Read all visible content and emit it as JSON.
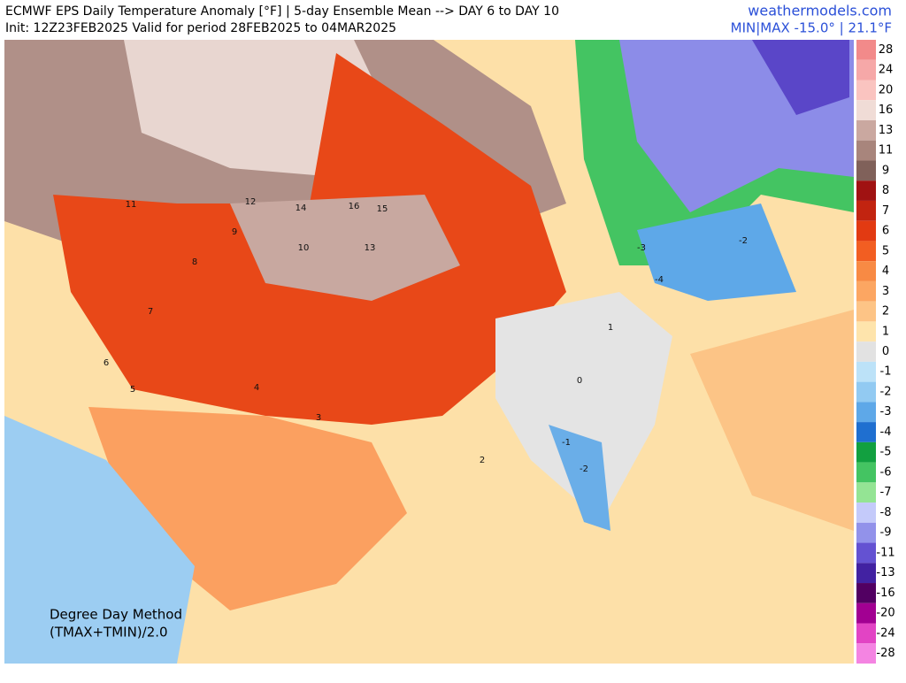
{
  "header": {
    "title": "ECMWF EPS Daily Temperature Anomaly [°F] | 5-day Ensemble Mean --> DAY 6 to DAY 10",
    "subtitle": "Init: 12Z23FEB2025 Valid for period 28FEB2025 to 04MAR2025",
    "site": "weathermodels.com",
    "minmax": "MIN|MAX -15.0° | 21.1°F"
  },
  "method": {
    "line1": "Degree Day Method",
    "line2": "(TMAX+TMIN)/2.0"
  },
  "legend": [
    {
      "label": 28,
      "color": "#f28a8a"
    },
    {
      "label": 24,
      "color": "#f6a8a8"
    },
    {
      "label": 20,
      "color": "#fac4c0"
    },
    {
      "label": 16,
      "color": "#f0dcd6"
    },
    {
      "label": 13,
      "color": "#caa8a0"
    },
    {
      "label": 11,
      "color": "#a8857c"
    },
    {
      "label": 9,
      "color": "#80615a"
    },
    {
      "label": 8,
      "color": "#a01212"
    },
    {
      "label": 7,
      "color": "#c22410"
    },
    {
      "label": 6,
      "color": "#e23a12"
    },
    {
      "label": 5,
      "color": "#f25e22"
    },
    {
      "label": 4,
      "color": "#f88a44"
    },
    {
      "label": 3,
      "color": "#fca662"
    },
    {
      "label": 2,
      "color": "#fdc486"
    },
    {
      "label": 1,
      "color": "#fee4ac"
    },
    {
      "label": 0,
      "color": "#e2e2e2"
    },
    {
      "label": -1,
      "color": "#bce2f8"
    },
    {
      "label": -2,
      "color": "#92caf2"
    },
    {
      "label": -3,
      "color": "#5ea8e8"
    },
    {
      "label": -4,
      "color": "#1f6fd0"
    },
    {
      "label": -5,
      "color": "#12a040"
    },
    {
      "label": -6,
      "color": "#44c462"
    },
    {
      "label": -7,
      "color": "#94e494"
    },
    {
      "label": -8,
      "color": "#c4cafa"
    },
    {
      "label": -9,
      "color": "#9292ea"
    },
    {
      "label": -11,
      "color": "#6452d2"
    },
    {
      "label": -13,
      "color": "#4222a2"
    },
    {
      "label": -16,
      "color": "#520062"
    },
    {
      "label": -20,
      "color": "#a20092"
    },
    {
      "label": -24,
      "color": "#e244c4"
    },
    {
      "label": -28,
      "color": "#f484e2"
    }
  ],
  "map_labels": [
    "11",
    "12",
    "14",
    "16",
    "15",
    "13",
    "10",
    "9",
    "8",
    "7",
    "6",
    "5",
    "4",
    "3",
    "2",
    "1",
    "0",
    "-1",
    "-2",
    "-4",
    "-3",
    "-2"
  ]
}
